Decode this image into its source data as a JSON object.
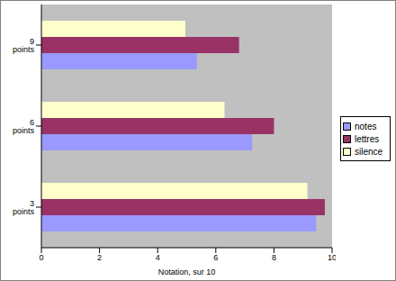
{
  "chart_data": {
    "type": "bar",
    "orientation": "horizontal",
    "categories": [
      "3 points",
      "6 points",
      "9 points"
    ],
    "series": [
      {
        "name": "notes",
        "color": "#9999ff",
        "values": [
          9.45,
          7.25,
          5.35
        ]
      },
      {
        "name": "lettres",
        "color": "#993366",
        "values": [
          9.75,
          8.0,
          6.8
        ]
      },
      {
        "name": "silence",
        "color": "#ffffcc",
        "values": [
          9.15,
          6.3,
          4.95
        ]
      }
    ],
    "xlabel": "Notation, sur 10",
    "xlim": [
      0,
      10
    ],
    "xticks": [
      0,
      2,
      4,
      6,
      8,
      10
    ],
    "legend": "right"
  }
}
